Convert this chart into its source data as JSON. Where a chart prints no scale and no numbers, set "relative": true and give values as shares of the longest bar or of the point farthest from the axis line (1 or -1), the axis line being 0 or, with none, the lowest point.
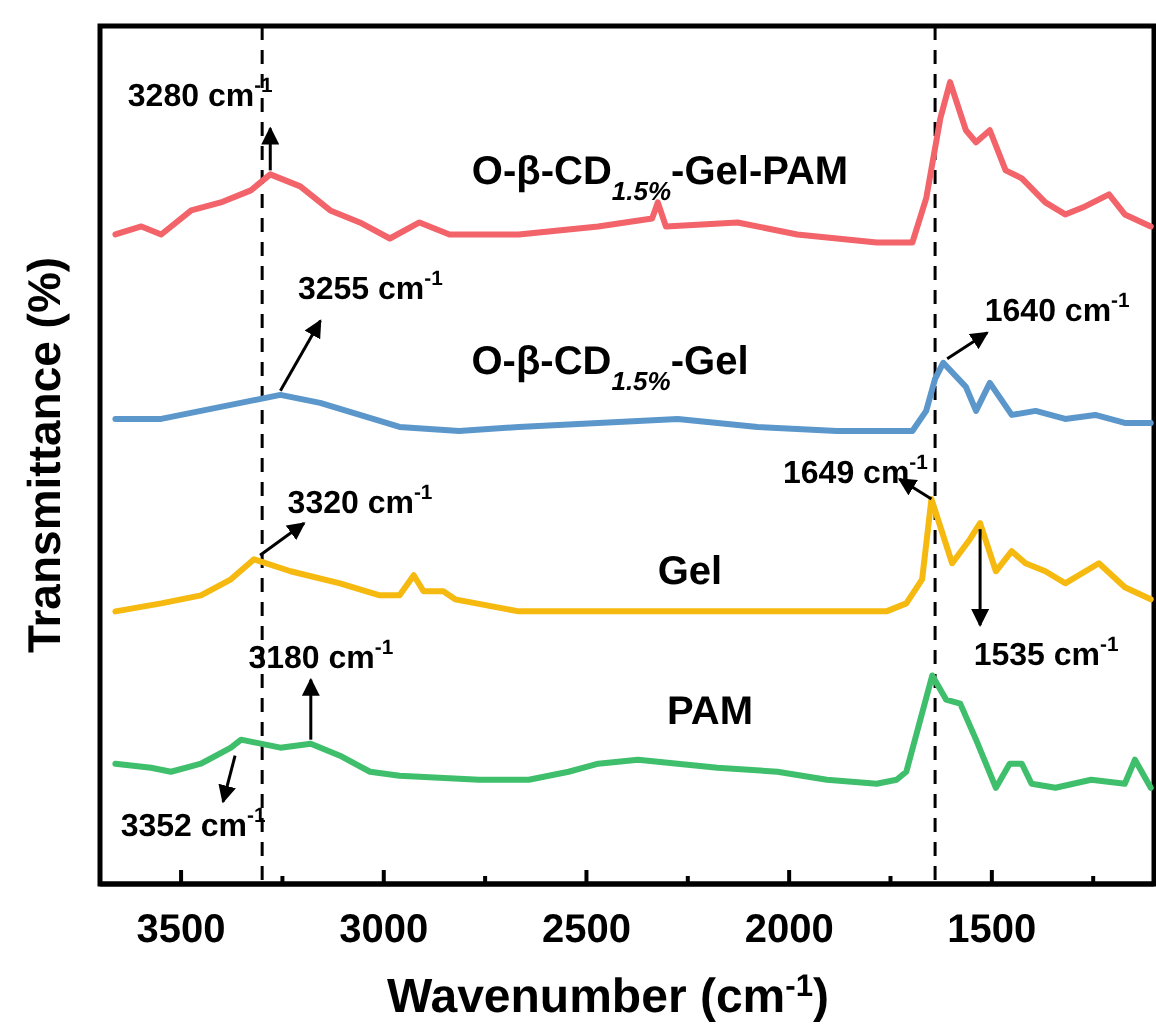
{
  "chart_data": {
    "type": "line",
    "relative": true,
    "xlabel": "Wavenumber (cm$^{-1}$)",
    "ylabel": "Transmittance (%)",
    "xlim": [
      3700,
      1100
    ],
    "xticks": [
      3500,
      {
        "value": 3250,
        "label": null
      },
      3000,
      {
        "value": 2750,
        "label": null
      },
      2500,
      {
        "value": 2250,
        "label": null
      },
      2000,
      {
        "value": 1750,
        "label": null
      },
      1500,
      {
        "value": 1250,
        "label": null
      }
    ],
    "grid": false,
    "line_style": "solid",
    "marker": "none",
    "series": [
      {
        "name": "O-β-CD$_{1.5%}$-Gel-PAM",
        "color": "#f2636a",
        "x": [
          3662,
          3598,
          3549,
          3475,
          3402,
          3328,
          3280,
          3206,
          3132,
          3059,
          2985,
          2912,
          2838,
          2667,
          2471,
          2338,
          2324,
          2304,
          2127,
          1980,
          1784,
          1696,
          1662,
          1627,
          1603,
          1564,
          1539,
          1505,
          1466,
          1426,
          1368,
          1319,
          1270,
          1211,
          1172,
          1108
        ],
        "values": [
          0.81,
          0.82,
          0.81,
          0.84,
          0.85,
          0.865,
          0.885,
          0.87,
          0.84,
          0.825,
          0.805,
          0.825,
          0.81,
          0.81,
          0.82,
          0.83,
          0.85,
          0.82,
          0.825,
          0.81,
          0.8,
          0.8,
          0.855,
          0.955,
          1,
          0.94,
          0.925,
          0.94,
          0.89,
          0.88,
          0.85,
          0.835,
          0.845,
          0.86,
          0.835,
          0.82
        ]
      },
      {
        "name": "O-β-CD$_{1.5%}$-Gel",
        "color": "#5b97cb",
        "x": [
          3662,
          3549,
          3451,
          3353,
          3255,
          3157,
          3059,
          2961,
          2814,
          2667,
          2471,
          2275,
          2078,
          1882,
          1696,
          1662,
          1640,
          1620,
          1564,
          1539,
          1505,
          1451,
          1392,
          1319,
          1245,
          1172,
          1108
        ],
        "values": [
          0.58,
          0.58,
          0.59,
          0.6,
          0.61,
          0.6,
          0.585,
          0.57,
          0.565,
          0.57,
          0.575,
          0.58,
          0.57,
          0.565,
          0.565,
          0.59,
          0.63,
          0.65,
          0.62,
          0.59,
          0.625,
          0.585,
          0.59,
          0.58,
          0.585,
          0.575,
          0.575
        ]
      },
      {
        "name": "Gel",
        "color": "#f5b90f",
        "x": [
          3662,
          3549,
          3451,
          3377,
          3320,
          3230,
          3108,
          3010,
          2961,
          2926,
          2902,
          2853,
          2824,
          2667,
          2373,
          1980,
          1760,
          1711,
          1672,
          1649,
          1598,
          1554,
          1529,
          1490,
          1451,
          1417,
          1368,
          1319,
          1236,
          1172,
          1108
        ],
        "values": [
          0.34,
          0.35,
          0.36,
          0.38,
          0.405,
          0.39,
          0.375,
          0.36,
          0.36,
          0.385,
          0.365,
          0.365,
          0.355,
          0.34,
          0.34,
          0.34,
          0.34,
          0.35,
          0.38,
          0.48,
          0.4,
          0.43,
          0.45,
          0.39,
          0.415,
          0.4,
          0.39,
          0.375,
          0.4,
          0.37,
          0.355
        ]
      },
      {
        "name": "PAM",
        "color": "#3fbf6c",
        "x": [
          3662,
          3574,
          3525,
          3451,
          3377,
          3352,
          3255,
          3180,
          3108,
          3034,
          2961,
          2765,
          2642,
          2544,
          2471,
          2373,
          2275,
          2177,
          2029,
          1907,
          1784,
          1735,
          1711,
          1647,
          1613,
          1578,
          1539,
          1490,
          1456,
          1426,
          1402,
          1343,
          1255,
          1172,
          1147,
          1108
        ],
        "values": [
          0.15,
          0.145,
          0.14,
          0.15,
          0.17,
          0.18,
          0.17,
          0.175,
          0.16,
          0.14,
          0.135,
          0.13,
          0.13,
          0.14,
          0.15,
          0.155,
          0.15,
          0.145,
          0.14,
          0.13,
          0.125,
          0.13,
          0.14,
          0.26,
          0.23,
          0.225,
          0.18,
          0.12,
          0.15,
          0.15,
          0.125,
          0.12,
          0.13,
          0.125,
          0.155,
          0.12
        ]
      }
    ],
    "ref_lines": [
      {
        "axis": "x",
        "value": 3300,
        "color": "#000000",
        "line_style": "dashed"
      },
      {
        "axis": "x",
        "value": 1640,
        "color": "#000000",
        "line_style": "dashed"
      }
    ],
    "annotations": [
      {
        "text": "3280 cm$^{-1}$",
        "x": 3280,
        "y": 0.885
      },
      {
        "text": "3255 cm$^{-1}$",
        "x": 3255,
        "y": 0.61
      },
      {
        "text": "1640 cm$^{-1}$",
        "x": 1620,
        "y": 0.65
      },
      {
        "text": "3320 cm$^{-1}$",
        "x": 3320,
        "y": 0.405
      },
      {
        "text": "1649 cm$^{-1}$",
        "x": 1649,
        "y": 0.48
      },
      {
        "text": "1535 cm$^{-1}$",
        "x": 1529,
        "y": 0.45
      },
      {
        "text": "3180 cm$^{-1}$",
        "x": 3180,
        "y": 0.175
      },
      {
        "text": "3352 cm$^{-1}$",
        "x": 3352,
        "y": 0.18
      }
    ]
  }
}
